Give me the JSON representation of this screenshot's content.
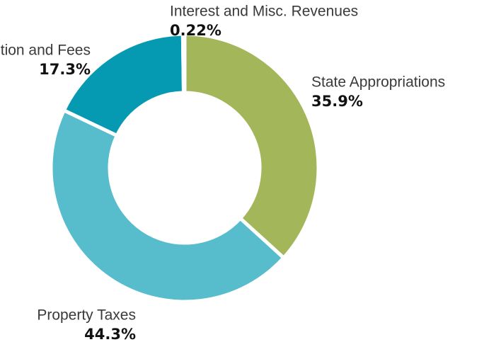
{
  "chart_data": {
    "type": "donut",
    "categories": [
      "State Appropriations",
      "Property Taxes",
      "Tuition and Fees",
      "Interest and Misc. Revenues"
    ],
    "values": [
      35.9,
      44.3,
      17.3,
      0.22
    ],
    "value_labels": [
      "35.9%",
      "44.3%",
      "17.3%",
      "0.22%"
    ],
    "colors": [
      "#a3b65a",
      "#57bdcc",
      "#059ab1",
      "#0b5a72"
    ]
  }
}
